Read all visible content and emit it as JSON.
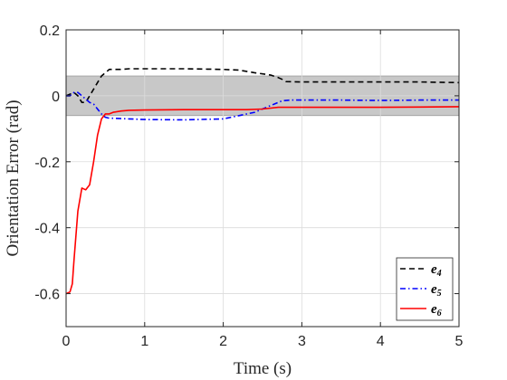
{
  "chart_data": {
    "type": "line",
    "xlabel": "Time (s)",
    "ylabel": "Orientation Error (rad)",
    "xlim": [
      0,
      5
    ],
    "ylim": [
      -0.7,
      0.2
    ],
    "xticks": [
      0,
      1,
      2,
      3,
      4,
      5
    ],
    "xtick_labels": [
      "0",
      "1",
      "2",
      "3",
      "4",
      "5"
    ],
    "yticks": [
      0.2,
      0,
      -0.2,
      -0.4,
      -0.6
    ],
    "ytick_labels": [
      "0.2",
      "0",
      "-0.2",
      "-0.4",
      "-0.6"
    ],
    "grid": true,
    "legend_position": "bottom-right",
    "band": {
      "y0": -0.06,
      "y1": 0.06,
      "color": "#c8c8c8"
    },
    "series": [
      {
        "name": "e",
        "subscript": "4",
        "color": "#000000",
        "dash": "dashed",
        "x": [
          0,
          0.1,
          0.15,
          0.2,
          0.25,
          0.3,
          0.35,
          0.4,
          0.45,
          0.5,
          0.55,
          0.6,
          0.7,
          0.8,
          1.0,
          1.2,
          1.5,
          1.8,
          2.0,
          2.2,
          2.4,
          2.6,
          2.7,
          2.75,
          2.8,
          3.0,
          3.5,
          4.0,
          4.5,
          5.0
        ],
        "y": [
          0.0,
          0.01,
          0.0,
          -0.02,
          -0.02,
          0.0,
          0.02,
          0.04,
          0.06,
          0.07,
          0.08,
          0.08,
          0.08,
          0.082,
          0.082,
          0.082,
          0.082,
          0.081,
          0.08,
          0.078,
          0.07,
          0.063,
          0.055,
          0.05,
          0.043,
          0.042,
          0.042,
          0.042,
          0.042,
          0.04
        ]
      },
      {
        "name": "e",
        "subscript": "5",
        "color": "#0000ff",
        "dash": "dashdot",
        "x": [
          0,
          0.05,
          0.1,
          0.15,
          0.2,
          0.25,
          0.3,
          0.35,
          0.4,
          0.45,
          0.5,
          0.55,
          0.6,
          0.8,
          1.0,
          1.5,
          2.0,
          2.2,
          2.4,
          2.55,
          2.65,
          2.75,
          2.85,
          3.0,
          3.5,
          4.0,
          4.5,
          5.0
        ],
        "y": [
          0.0,
          0.0,
          0.01,
          0.01,
          0.0,
          -0.01,
          -0.02,
          -0.025,
          -0.04,
          -0.055,
          -0.065,
          -0.068,
          -0.068,
          -0.07,
          -0.072,
          -0.073,
          -0.07,
          -0.06,
          -0.05,
          -0.035,
          -0.025,
          -0.015,
          -0.013,
          -0.013,
          -0.013,
          -0.014,
          -0.013,
          -0.013
        ]
      },
      {
        "name": "e",
        "subscript": "6",
        "color": "#ff0000",
        "dash": "solid",
        "x": [
          0,
          0.05,
          0.08,
          0.1,
          0.15,
          0.2,
          0.25,
          0.3,
          0.35,
          0.4,
          0.45,
          0.5,
          0.55,
          0.6,
          0.7,
          0.8,
          1.0,
          1.5,
          2.0,
          2.3,
          2.5,
          2.7,
          3.0,
          3.5,
          4.0,
          4.5,
          5.0
        ],
        "y": [
          -0.6,
          -0.595,
          -0.57,
          -0.5,
          -0.35,
          -0.28,
          -0.285,
          -0.27,
          -0.2,
          -0.12,
          -0.07,
          -0.055,
          -0.055,
          -0.05,
          -0.046,
          -0.044,
          -0.043,
          -0.042,
          -0.042,
          -0.042,
          -0.04,
          -0.035,
          -0.035,
          -0.035,
          -0.035,
          -0.034,
          -0.033
        ]
      }
    ]
  }
}
